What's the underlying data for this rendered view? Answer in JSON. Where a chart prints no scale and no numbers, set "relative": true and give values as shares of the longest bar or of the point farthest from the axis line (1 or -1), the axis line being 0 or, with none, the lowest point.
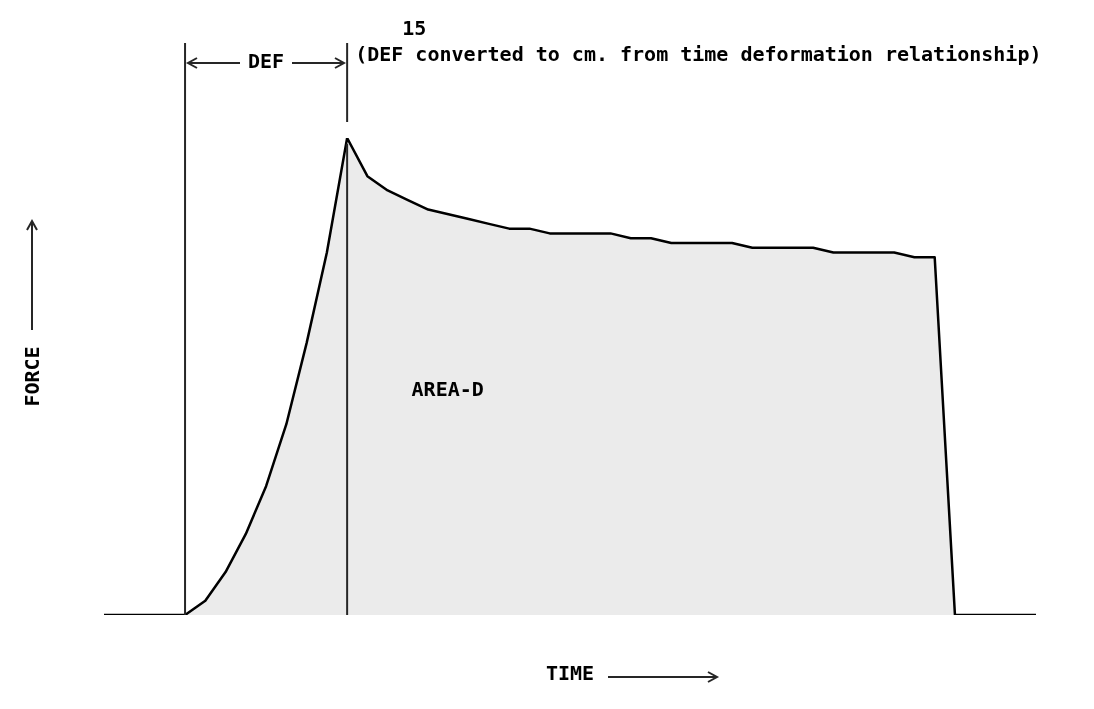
{
  "chart_data": {
    "type": "area",
    "relative": true,
    "xlabel": "TIME",
    "ylabel": "FORCE",
    "color": "#000000",
    "marker": "none",
    "categories": [
      null,
      null,
      null,
      null,
      null,
      null,
      null,
      null,
      null,
      null,
      null,
      null,
      null,
      null,
      null,
      null,
      null,
      null,
      null,
      null,
      null,
      null,
      null,
      null,
      null,
      null,
      null,
      null,
      null,
      null,
      null,
      null,
      null,
      null,
      null,
      null,
      null,
      null,
      null,
      null,
      null,
      null,
      null,
      null,
      null,
      null,
      null
    ],
    "values": [
      0,
      0,
      0,
      0,
      0,
      0.03,
      0.09,
      0.17,
      0.27,
      0.4,
      0.57,
      0.76,
      1,
      0.92,
      0.89,
      0.87,
      0.85,
      0.84,
      0.83,
      0.82,
      0.81,
      0.81,
      0.8,
      0.8,
      0.8,
      0.8,
      0.79,
      0.79,
      0.78,
      0.78,
      0.78,
      0.78,
      0.77,
      0.77,
      0.77,
      0.77,
      0.76,
      0.76,
      0.76,
      0.76,
      0.75,
      0.75,
      0,
      0,
      0,
      0,
      0
    ],
    "annotations": [
      "15",
      "(DEF converted to cm. from time deformation relationship)",
      "DEF",
      "AREA-D"
    ]
  }
}
